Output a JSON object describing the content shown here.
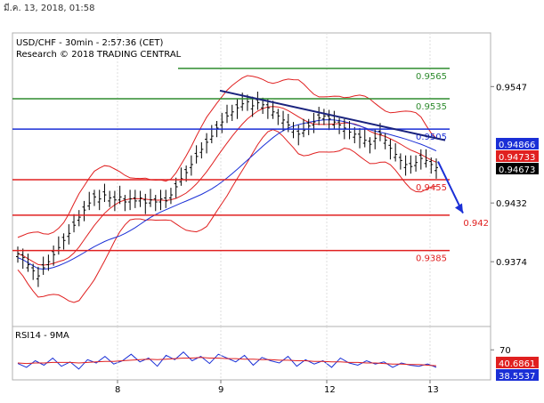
{
  "header": {
    "date_stamp": "มี.ค. 13, 2018, 01:58"
  },
  "chart_data": [
    {
      "type": "candlestick",
      "title": "USD/CHF - 30min - 2:57:36 (CET)",
      "subtitle": "Research © 2018 TRADING CENTRAL",
      "ylim": [
        0.931,
        0.96
      ],
      "x_ticks": [
        "8",
        "9",
        "12",
        "13"
      ],
      "y_ticks": [
        0.9547,
        0.9432,
        0.9374
      ],
      "horizontal_levels": [
        {
          "value": 0.9565,
          "label": "0.9565",
          "color": "#2e8b2e"
        },
        {
          "value": 0.9535,
          "label": "0.9535",
          "color": "#2e8b2e"
        },
        {
          "value": 0.9505,
          "label": "0.9505",
          "color": "#1a2fd6"
        },
        {
          "value": 0.9455,
          "label": "0.9455",
          "color": "#e02020"
        },
        {
          "value": 0.942,
          "label": "0.942",
          "color": "#e02020"
        },
        {
          "value": 0.9385,
          "label": "0.9385",
          "color": "#e02020"
        }
      ],
      "price_badges": [
        {
          "value": 0.94866,
          "label": "0.94866",
          "bg": "#1a2fd6"
        },
        {
          "value": 0.94733,
          "label": "0.94733",
          "bg": "#e02020"
        },
        {
          "value": 0.94673,
          "label": "0.94673",
          "bg": "#000000"
        }
      ],
      "trendline": {
        "from": [
          0,
          0.9543
        ],
        "to": [
          1,
          0.9494
        ],
        "color": "#1a237e"
      },
      "forecast_arrow": {
        "from_price": 0.9473,
        "to_price": 0.9422,
        "color": "#1a2fd6"
      },
      "candles": [
        0.9382,
        0.9378,
        0.9371,
        0.9365,
        0.936,
        0.9368,
        0.9374,
        0.9381,
        0.9388,
        0.9395,
        0.9402,
        0.941,
        0.9418,
        0.9425,
        0.9432,
        0.9438,
        0.9436,
        0.944,
        0.9437,
        0.9435,
        0.9438,
        0.9433,
        0.9436,
        0.9434,
        0.9437,
        0.9432,
        0.9435,
        0.9433,
        0.9436,
        0.9434,
        0.944,
        0.9448,
        0.9456,
        0.9462,
        0.947,
        0.9478,
        0.9485,
        0.9492,
        0.9498,
        0.9506,
        0.9512,
        0.9518,
        0.9522,
        0.9526,
        0.953,
        0.9532,
        0.9528,
        0.9531,
        0.9529,
        0.9526,
        0.9522,
        0.9518,
        0.9514,
        0.9509,
        0.9505,
        0.95,
        0.9504,
        0.9508,
        0.9512,
        0.9516,
        0.9518,
        0.9515,
        0.9512,
        0.9509,
        0.9506,
        0.9502,
        0.95,
        0.9497,
        0.9494,
        0.949,
        0.9496,
        0.95,
        0.9494,
        0.9486,
        0.948,
        0.9474,
        0.947,
        0.9468,
        0.9472,
        0.9476,
        0.9474,
        0.947,
        0.9467
      ]
    },
    {
      "type": "line",
      "title": "RSI14 - 9MA",
      "ylim": [
        20,
        85
      ],
      "y_ticks": [
        70
      ],
      "x_ticks": [
        "8",
        "9",
        "12",
        "13"
      ],
      "series": [
        {
          "name": "RSI14",
          "color": "#1a2fd6",
          "values": [
            45,
            38,
            50,
            42,
            55,
            40,
            48,
            35,
            52,
            46,
            58,
            44,
            50,
            62,
            48,
            55,
            40,
            60,
            52,
            66,
            50,
            58,
            45,
            62,
            55,
            48,
            60,
            42,
            56,
            50,
            46,
            58,
            40,
            52,
            44,
            50,
            38,
            55,
            46,
            42,
            50,
            44,
            48,
            38,
            46,
            42,
            40,
            44,
            38
          ]
        },
        {
          "name": "9MA",
          "color": "#e02020",
          "values": [
            46,
            45,
            46,
            46,
            47,
            47,
            47,
            46,
            47,
            48,
            49,
            49,
            50,
            51,
            52,
            53,
            52,
            53,
            54,
            55,
            55,
            56,
            55,
            55,
            54,
            54,
            53,
            53,
            52,
            52,
            51,
            51,
            50,
            50,
            49,
            49,
            48,
            48,
            47,
            47,
            46,
            46,
            45,
            44,
            44,
            43,
            43,
            42,
            41
          ]
        }
      ],
      "badges": [
        {
          "value": 40.6861,
          "label": "40.6861",
          "bg": "#e02020"
        },
        {
          "value": 38.5537,
          "label": "38.5537",
          "bg": "#1a2fd6"
        }
      ]
    }
  ]
}
